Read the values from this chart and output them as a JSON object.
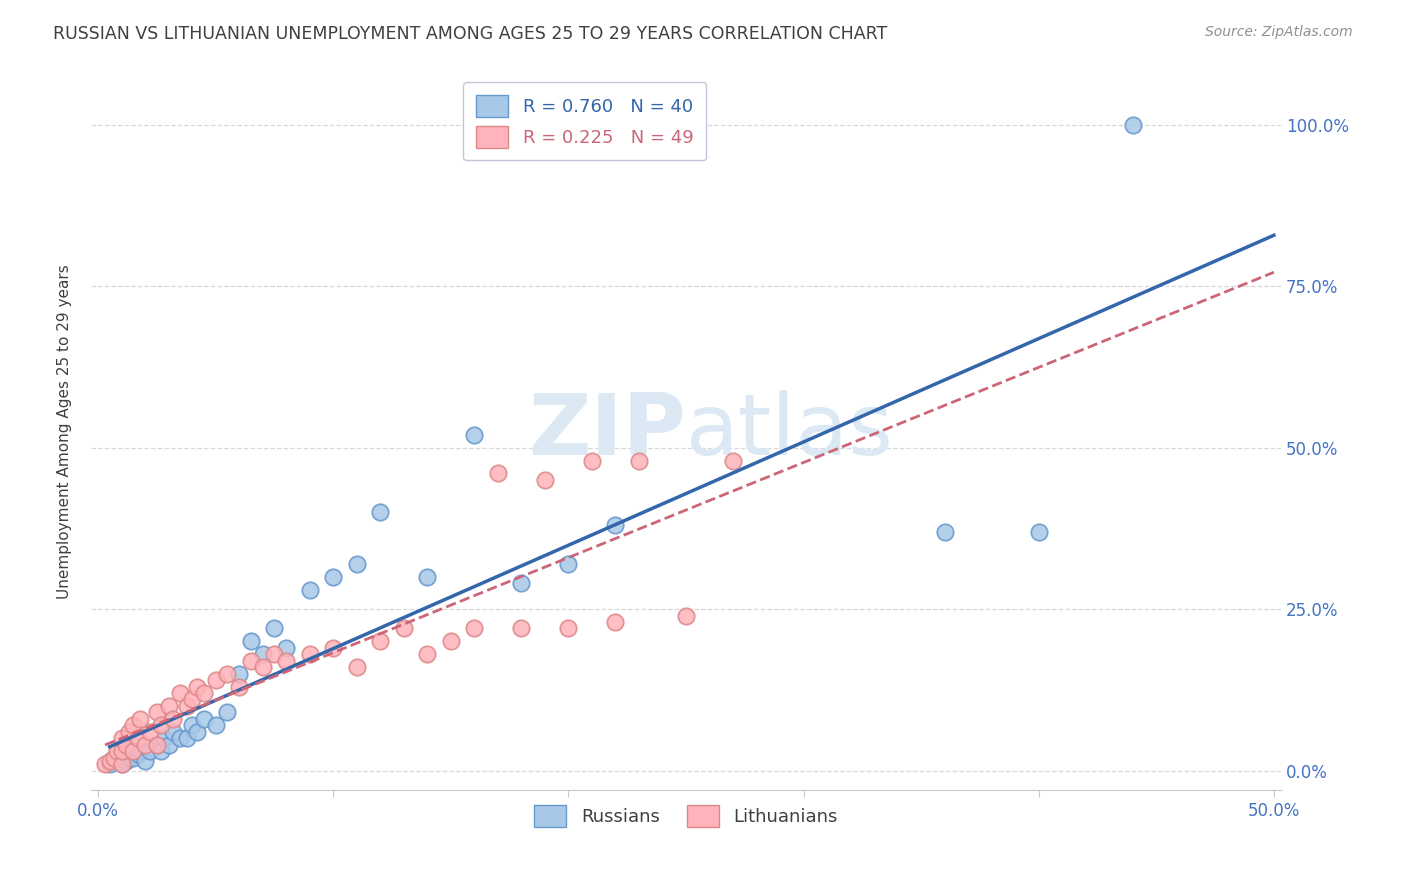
{
  "title": "RUSSIAN VS LITHUANIAN UNEMPLOYMENT AMONG AGES 25 TO 29 YEARS CORRELATION CHART",
  "source": "Source: ZipAtlas.com",
  "ylabel": "Unemployment Among Ages 25 to 29 years",
  "xlim": [
    -0.003,
    0.503
  ],
  "ylim": [
    -0.03,
    1.08
  ],
  "xticks": [
    0.0,
    0.1,
    0.2,
    0.3,
    0.4,
    0.5
  ],
  "xtick_labels_show": [
    "0.0%",
    "",
    "",
    "",
    "",
    "50.0%"
  ],
  "yticks": [
    0.0,
    0.25,
    0.5,
    0.75,
    1.0
  ],
  "ytick_labels": [
    "0.0%",
    "25.0%",
    "50.0%",
    "75.0%",
    "100.0%"
  ],
  "legend_r_blue": "R = 0.760",
  "legend_n_blue": "N = 40",
  "legend_r_pink": "R = 0.225",
  "legend_n_pink": "N = 49",
  "legend_label_blue": "Russians",
  "legend_label_pink": "Lithuanians",
  "blue_scatter_color": "#a8c8e8",
  "blue_scatter_edge": "#6699cc",
  "pink_scatter_color": "#ffb3ba",
  "pink_scatter_edge": "#dd8888",
  "blue_line_color": "#3366aa",
  "pink_line_color": "#cc6677",
  "axis_tick_color": "#4472c4",
  "watermark_color": "#dce9f5",
  "title_color": "#404040",
  "source_color": "#909090",
  "grid_color": "#d8d8d8",
  "legend_blue_text_color": "#3366aa",
  "legend_pink_text_color": "#cc6677",
  "russians_x": [
    0.005,
    0.007,
    0.01,
    0.012,
    0.013,
    0.015,
    0.015,
    0.017,
    0.018,
    0.02,
    0.022,
    0.025,
    0.027,
    0.028,
    0.03,
    0.032,
    0.035,
    0.038,
    0.04,
    0.042,
    0.045,
    0.05,
    0.055,
    0.06,
    0.065,
    0.07,
    0.075,
    0.08,
    0.09,
    0.1,
    0.11,
    0.12,
    0.14,
    0.16,
    0.18,
    0.2,
    0.22,
    0.36,
    0.4,
    0.44
  ],
  "russians_y": [
    0.01,
    0.02,
    0.01,
    0.015,
    0.02,
    0.02,
    0.03,
    0.025,
    0.03,
    0.015,
    0.03,
    0.04,
    0.03,
    0.05,
    0.04,
    0.06,
    0.05,
    0.05,
    0.07,
    0.06,
    0.08,
    0.07,
    0.09,
    0.15,
    0.2,
    0.18,
    0.22,
    0.19,
    0.28,
    0.3,
    0.32,
    0.4,
    0.3,
    0.52,
    0.29,
    0.32,
    0.38,
    0.37,
    0.37,
    1.0
  ],
  "lithuanians_x": [
    0.003,
    0.005,
    0.007,
    0.008,
    0.01,
    0.01,
    0.01,
    0.012,
    0.013,
    0.015,
    0.015,
    0.017,
    0.018,
    0.02,
    0.022,
    0.025,
    0.025,
    0.027,
    0.03,
    0.032,
    0.035,
    0.038,
    0.04,
    0.042,
    0.045,
    0.05,
    0.055,
    0.06,
    0.065,
    0.07,
    0.075,
    0.08,
    0.09,
    0.1,
    0.11,
    0.12,
    0.13,
    0.14,
    0.15,
    0.16,
    0.17,
    0.18,
    0.19,
    0.2,
    0.21,
    0.22,
    0.23,
    0.25,
    0.27
  ],
  "lithuanians_y": [
    0.01,
    0.015,
    0.02,
    0.03,
    0.01,
    0.03,
    0.05,
    0.04,
    0.06,
    0.03,
    0.07,
    0.05,
    0.08,
    0.04,
    0.06,
    0.04,
    0.09,
    0.07,
    0.1,
    0.08,
    0.12,
    0.1,
    0.11,
    0.13,
    0.12,
    0.14,
    0.15,
    0.13,
    0.17,
    0.16,
    0.18,
    0.17,
    0.18,
    0.19,
    0.16,
    0.2,
    0.22,
    0.18,
    0.2,
    0.22,
    0.46,
    0.22,
    0.45,
    0.22,
    0.48,
    0.23,
    0.48,
    0.24,
    0.48
  ]
}
